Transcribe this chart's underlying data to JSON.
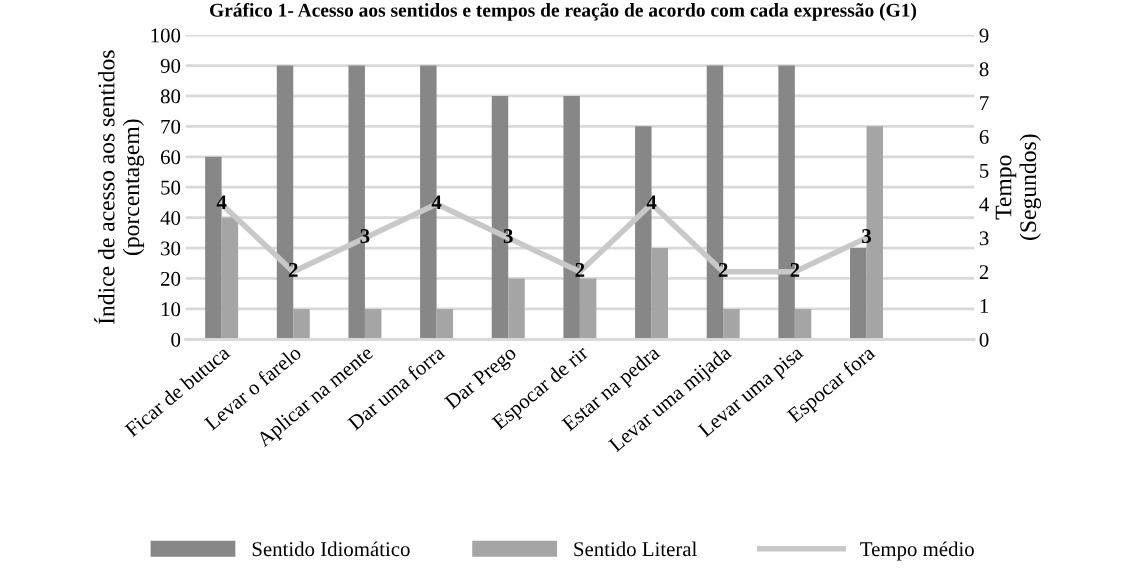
{
  "chart_data": {
    "type": "bar",
    "title": "Gráfico 1- Acesso aos sentidos e tempos de reação de acordo com cada expressão (G1)",
    "categories": [
      "Ficar de butuca",
      "Levar o farelo",
      "Aplicar na mente",
      "Dar uma forra",
      "Dar Prego",
      "Espocar de rir",
      "Estar na pedra",
      "Levar uma mijada",
      "Levar uma pisa",
      "Espocar fora",
      null
    ],
    "series": [
      {
        "name": "Sentido Idiomático",
        "color": "#878787",
        "values": [
          60,
          90,
          90,
          90,
          80,
          80,
          70,
          90,
          90,
          30,
          null
        ]
      },
      {
        "name": "Sentido Literal",
        "color": "#a5a5a5",
        "values": [
          40,
          10,
          10,
          10,
          20,
          20,
          30,
          10,
          10,
          70,
          null
        ]
      },
      {
        "name": "Tempo médio",
        "type": "line",
        "axis": "y2",
        "color": "#c8c8c8",
        "values": [
          4,
          2,
          3,
          4,
          3,
          2,
          4,
          2,
          2,
          3,
          null
        ],
        "value_labels": [
          "4",
          "2",
          "3",
          "4",
          "3",
          "2",
          "4",
          "2",
          "2",
          "3",
          null
        ]
      }
    ],
    "ylabel": "Índice de acesso aos sentidos\n(porcentagem)",
    "y2label": "Tempo\n(Segundos)",
    "ylim": [
      0,
      100
    ],
    "yticks": [
      0,
      10,
      20,
      30,
      40,
      50,
      60,
      70,
      80,
      90,
      100
    ],
    "y2lim": [
      0,
      9
    ],
    "y2ticks": [
      0,
      1,
      2,
      3,
      4,
      5,
      6,
      7,
      8,
      9
    ],
    "grid": "y",
    "legend": "bottom",
    "marker": "none"
  }
}
